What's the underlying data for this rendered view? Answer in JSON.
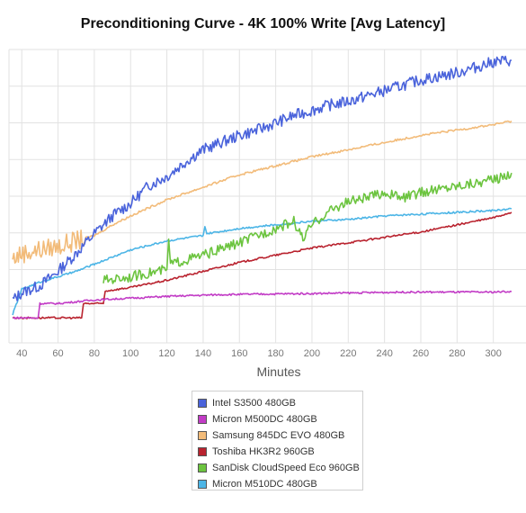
{
  "chart_data": {
    "type": "line",
    "title": "Preconditioning Curve - 4K 100% Write [Avg Latency]",
    "xlabel": "Minutes",
    "ylabel": "",
    "x_ticks": [
      40,
      60,
      80,
      100,
      120,
      140,
      160,
      180,
      200,
      220,
      240,
      260,
      280,
      300
    ],
    "grid": true,
    "legend_position": "bottom",
    "series": [
      {
        "name": "Intel S3500 480GB",
        "color": "#4a63db",
        "x": [
          35,
          40,
          50,
          60,
          70,
          80,
          90,
          100,
          110,
          120,
          130,
          140,
          150,
          160,
          170,
          180,
          190,
          200,
          210,
          220,
          230,
          240,
          250,
          260,
          270,
          280,
          290,
          300,
          310
        ],
        "y": [
          1.2,
          1.4,
          1.6,
          2.0,
          2.5,
          3.05,
          3.55,
          3.9,
          4.4,
          4.65,
          5.05,
          5.4,
          5.6,
          5.8,
          5.95,
          6.15,
          6.35,
          6.5,
          6.65,
          6.75,
          6.9,
          7.05,
          7.2,
          7.35,
          7.45,
          7.55,
          7.7,
          7.85,
          7.9
        ]
      },
      {
        "name": "Micron M500DC 480GB",
        "color": "#c23cc6",
        "x": [
          35,
          49,
          50,
          60,
          80,
          100,
          120,
          150,
          200,
          250,
          300,
          310
        ],
        "y": [
          0.7,
          0.7,
          1.1,
          1.1,
          1.2,
          1.25,
          1.3,
          1.35,
          1.38,
          1.42,
          1.42,
          1.44
        ]
      },
      {
        "name": "Samsung 845DC EVO 480GB",
        "color": "#f2bb79",
        "x": [
          35,
          40,
          50,
          60,
          70,
          80,
          90,
          100,
          120,
          140,
          160,
          180,
          200,
          220,
          240,
          260,
          280,
          300,
          310
        ],
        "y": [
          2.35,
          2.5,
          2.6,
          2.7,
          2.85,
          3.0,
          3.3,
          3.55,
          4.0,
          4.35,
          4.7,
          4.95,
          5.2,
          5.4,
          5.6,
          5.8,
          5.95,
          6.1,
          6.2
        ]
      },
      {
        "name": "Toshiba HK3R2 960GB",
        "color": "#b9232f",
        "x": [
          35,
          60,
          73,
          74,
          85,
          86,
          100,
          120,
          140,
          160,
          180,
          200,
          220,
          240,
          260,
          280,
          300,
          310
        ],
        "y": [
          0.7,
          0.7,
          0.7,
          1.1,
          1.1,
          1.45,
          1.55,
          1.75,
          2.0,
          2.25,
          2.45,
          2.65,
          2.8,
          2.95,
          3.1,
          3.3,
          3.5,
          3.65
        ]
      },
      {
        "name": "SanDisk CloudSpeed Eco 960GB",
        "color": "#6cc43f",
        "x": [
          85,
          100,
          120,
          121,
          122,
          140,
          160,
          180,
          190,
          195,
          200,
          210,
          220,
          230,
          240,
          250,
          260,
          280,
          300,
          310
        ],
        "y": [
          1.75,
          1.85,
          2.05,
          2.9,
          2.2,
          2.45,
          2.8,
          3.2,
          3.4,
          2.9,
          3.3,
          3.7,
          3.95,
          4.05,
          4.2,
          4.05,
          4.2,
          4.4,
          4.55,
          4.75
        ]
      },
      {
        "name": "Micron M510DC 480GB",
        "color": "#4cb5e6",
        "x": [
          35,
          40,
          45,
          50,
          60,
          70,
          80,
          100,
          120,
          140,
          141,
          142,
          160,
          180,
          200,
          220,
          240,
          260,
          280,
          300,
          310
        ],
        "y": [
          0.8,
          1.5,
          1.6,
          1.7,
          1.85,
          2.0,
          2.2,
          2.6,
          2.85,
          3.0,
          3.25,
          3.05,
          3.2,
          3.3,
          3.4,
          3.45,
          3.55,
          3.6,
          3.65,
          3.7,
          3.75
        ]
      }
    ]
  }
}
